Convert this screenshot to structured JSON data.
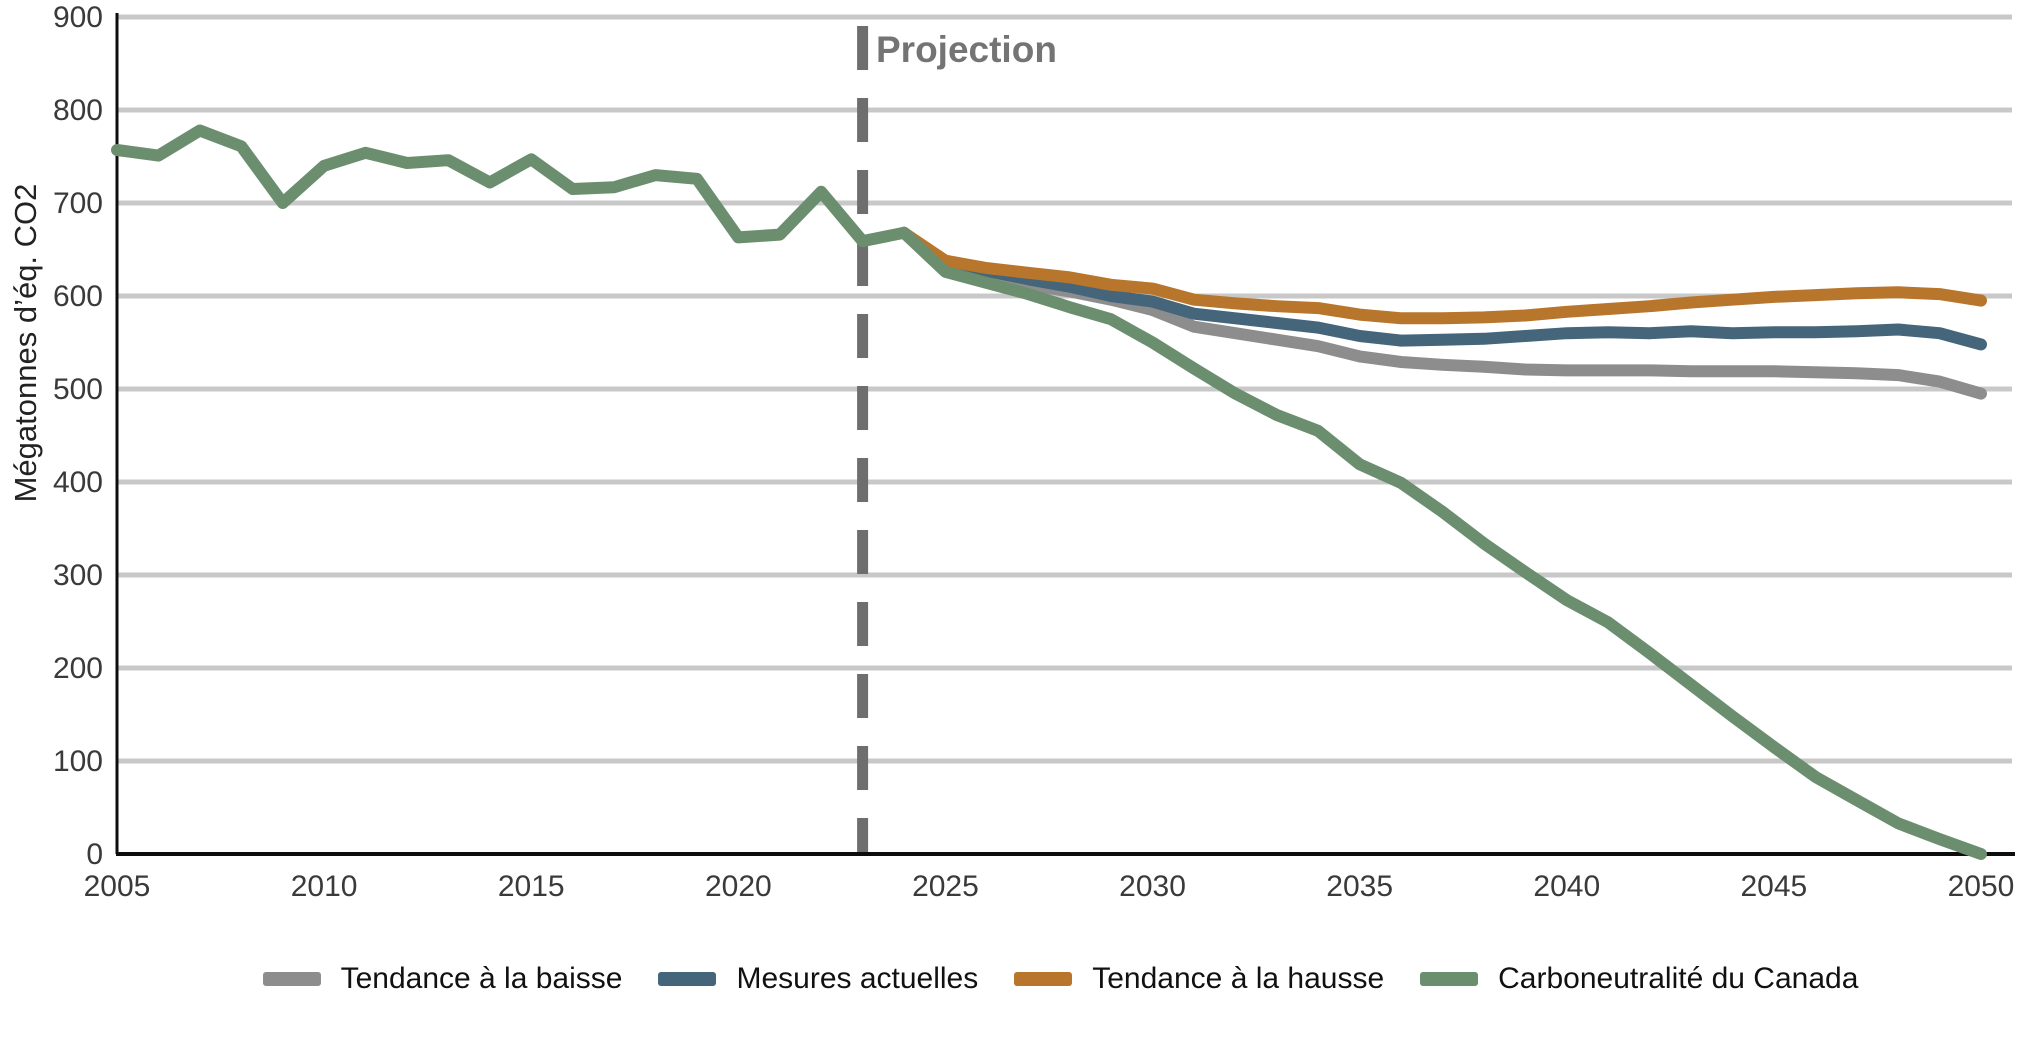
{
  "chart_data": {
    "type": "line",
    "title": "",
    "ylabel": "Mégatonnes d’éq. CO2",
    "xlabel": "",
    "ylim": [
      0,
      900
    ],
    "xlim": [
      2005,
      2050
    ],
    "yticks": [
      0,
      100,
      200,
      300,
      400,
      500,
      600,
      700,
      800,
      900
    ],
    "xticks": [
      2005,
      2010,
      2015,
      2020,
      2025,
      2030,
      2035,
      2040,
      2045,
      2050
    ],
    "grid": "horizontal",
    "gridline_color": "#c8c8c8",
    "axis_color": "#0d0d0d",
    "tick_label_color": "#3a3a3a",
    "legend_position": "bottom center",
    "annotation": {
      "label": "Projection",
      "x": 2023,
      "style": "vertical-dashed-line",
      "line_color": "#6e6e6e",
      "label_color": "#747474"
    },
    "series": [
      {
        "name": "Tendance à la baisse",
        "color": "#8d8d8d",
        "start_year": 2024,
        "values": [
          668,
          632,
          622,
          612,
          605,
          596,
          585,
          567,
          560,
          553,
          546,
          535,
          529,
          526,
          524,
          521,
          520,
          520,
          520,
          519,
          519,
          519,
          518,
          517,
          515,
          508,
          495
        ]
      },
      {
        "name": "Mesures actuelles",
        "color": "#45657a",
        "start_year": 2024,
        "values": [
          668,
          635,
          627,
          618,
          610,
          600,
          594,
          581,
          576,
          571,
          566,
          557,
          552,
          553,
          554,
          557,
          560,
          561,
          560,
          562,
          560,
          561,
          561,
          562,
          564,
          560,
          548
        ]
      },
      {
        "name": "Tendance à la hausse",
        "color": "#b7762b",
        "start_year": 2024,
        "values": [
          668,
          638,
          630,
          625,
          620,
          612,
          608,
          596,
          592,
          589,
          587,
          580,
          576,
          576,
          577,
          579,
          583,
          586,
          589,
          593,
          596,
          599,
          601,
          603,
          604,
          602,
          595
        ]
      },
      {
        "name": "Carboneutralité du Canada",
        "color": "#6b8f6e",
        "start_year": 2005,
        "values": [
          757,
          751,
          778,
          761,
          700,
          740,
          754,
          743,
          746,
          722,
          747,
          715,
          717,
          730,
          726,
          663,
          666,
          712,
          659,
          668,
          626,
          614,
          602,
          588,
          575,
          550,
          522,
          495,
          472,
          455,
          419,
          399,
          368,
          334,
          303,
          273,
          249,
          216,
          182,
          148,
          115,
          83,
          58,
          33,
          16,
          0
        ]
      }
    ]
  }
}
